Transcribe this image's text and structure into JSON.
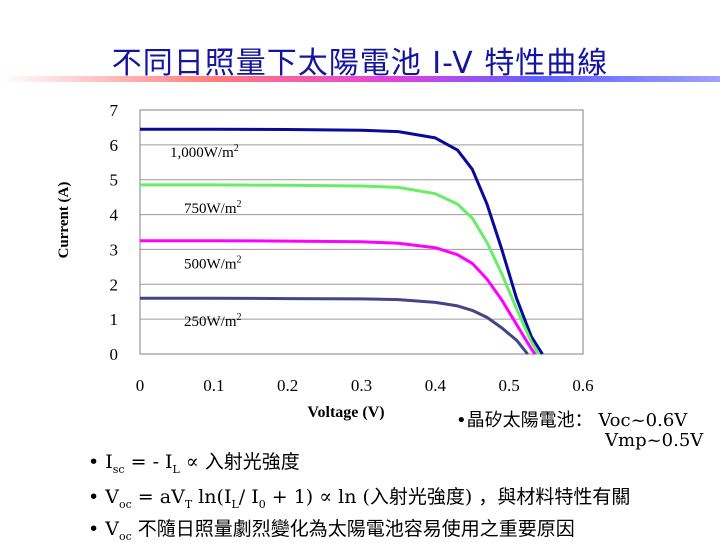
{
  "slide": {
    "title": "不同日照量下太陽電池 I-V 特性曲線",
    "side_note_1": "•晶矽太陽電池： Voc~0.6V",
    "side_note_2": "Vmp~0.5V"
  },
  "bullets": {
    "b1": {
      "pre": "• I",
      "sub1": "sc",
      "mid1": " = - I",
      "sub2": "L",
      "post": "  ∝ 入射光強度"
    },
    "b2": {
      "pre": "• V",
      "sub1": "oc",
      "mid1": " = aV",
      "sub2": "T",
      "mid2": " ln(I",
      "sub3": "L",
      "mid3": "/ I",
      "sub4": "0",
      "post": " + 1) ∝ ln (入射光強度) ，與材料特性有關"
    },
    "b3": {
      "pre": "• V",
      "sub1": "oc",
      "post": " 不隨日照量劇烈變化為太陽電池容易使用之重要原因"
    }
  },
  "chart_data": {
    "type": "line",
    "xlabel": "Voltage (V)",
    "ylabel": "Current (A)",
    "xlim": [
      0,
      0.6
    ],
    "ylim": [
      0,
      7
    ],
    "x_ticks": [
      "0",
      "0.1",
      "0.2",
      "0.3",
      "0.4",
      "0.5",
      "0.6"
    ],
    "y_ticks": [
      "0",
      "1",
      "2",
      "3",
      "4",
      "5",
      "6",
      "7"
    ],
    "grid": "horizontal",
    "series": [
      {
        "label_base": "1,000W/m",
        "label_sup": "2",
        "color": "#0a0a9a",
        "points": [
          [
            0,
            6.45
          ],
          [
            0.1,
            6.45
          ],
          [
            0.2,
            6.44
          ],
          [
            0.3,
            6.42
          ],
          [
            0.35,
            6.38
          ],
          [
            0.4,
            6.2
          ],
          [
            0.43,
            5.85
          ],
          [
            0.45,
            5.3
          ],
          [
            0.47,
            4.3
          ],
          [
            0.49,
            3.0
          ],
          [
            0.51,
            1.6
          ],
          [
            0.53,
            0.5
          ],
          [
            0.545,
            0
          ]
        ]
      },
      {
        "label_base": "750W/m",
        "label_sup": "2",
        "color": "#66ee66",
        "points": [
          [
            0,
            4.85
          ],
          [
            0.1,
            4.85
          ],
          [
            0.2,
            4.84
          ],
          [
            0.3,
            4.82
          ],
          [
            0.35,
            4.78
          ],
          [
            0.4,
            4.6
          ],
          [
            0.43,
            4.3
          ],
          [
            0.45,
            3.9
          ],
          [
            0.47,
            3.2
          ],
          [
            0.49,
            2.3
          ],
          [
            0.51,
            1.3
          ],
          [
            0.53,
            0.35
          ],
          [
            0.54,
            0
          ]
        ]
      },
      {
        "label_base": "500W/m",
        "label_sup": "2",
        "color": "#ff00ff",
        "points": [
          [
            0,
            3.25
          ],
          [
            0.1,
            3.25
          ],
          [
            0.2,
            3.24
          ],
          [
            0.3,
            3.22
          ],
          [
            0.35,
            3.18
          ],
          [
            0.4,
            3.05
          ],
          [
            0.43,
            2.85
          ],
          [
            0.45,
            2.6
          ],
          [
            0.47,
            2.15
          ],
          [
            0.49,
            1.55
          ],
          [
            0.51,
            0.85
          ],
          [
            0.53,
            0.15
          ],
          [
            0.535,
            0
          ]
        ]
      },
      {
        "label_base": "250W/m",
        "label_sup": "2",
        "color": "#444488",
        "points": [
          [
            0,
            1.6
          ],
          [
            0.1,
            1.6
          ],
          [
            0.2,
            1.59
          ],
          [
            0.3,
            1.58
          ],
          [
            0.35,
            1.56
          ],
          [
            0.4,
            1.48
          ],
          [
            0.43,
            1.38
          ],
          [
            0.45,
            1.25
          ],
          [
            0.47,
            1.05
          ],
          [
            0.49,
            0.75
          ],
          [
            0.51,
            0.4
          ],
          [
            0.525,
            0
          ]
        ]
      }
    ]
  }
}
